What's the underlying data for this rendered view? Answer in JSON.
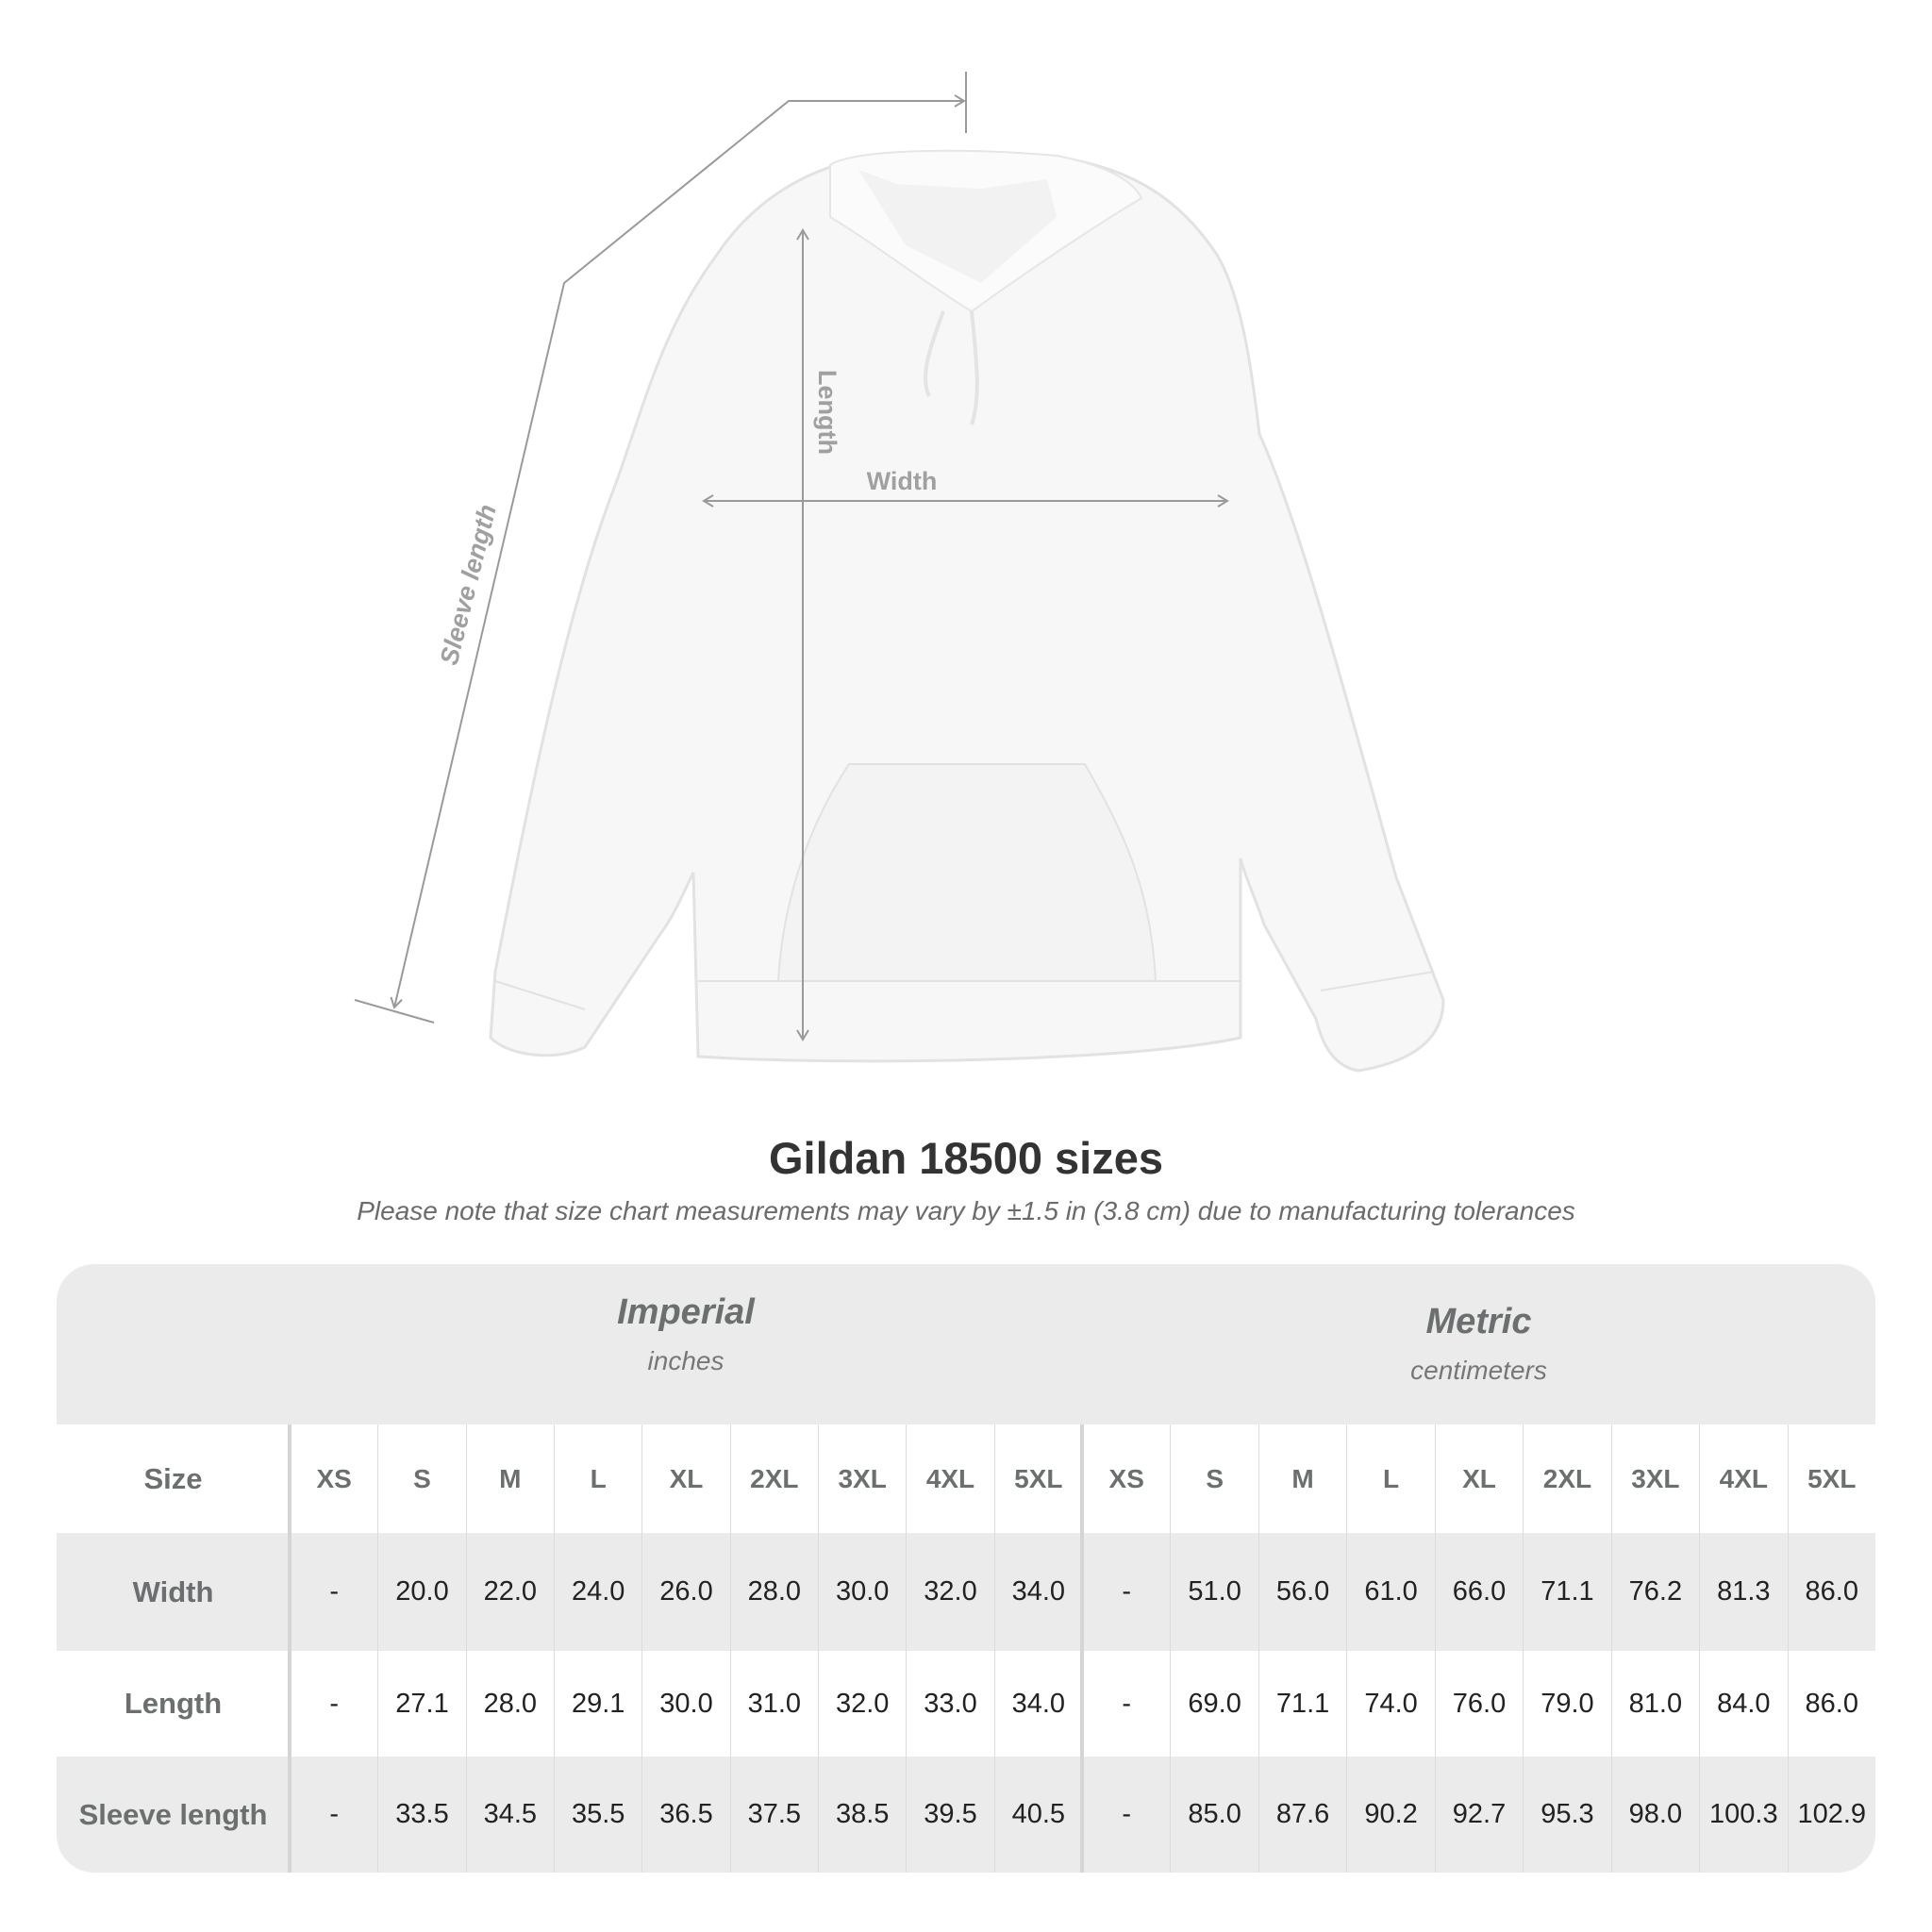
{
  "figure": {
    "labels": {
      "sleeve": "Sleeve length",
      "length": "Length",
      "width": "Width"
    }
  },
  "title": "Gildan 18500 sizes",
  "note": "Please note that size chart measurements may vary by ±1.5 in (3.8 cm) due to manufacturing tolerances",
  "table": {
    "imperial": {
      "name": "Imperial",
      "unit": "inches"
    },
    "metric": {
      "name": "Metric",
      "unit": "centimeters"
    },
    "size_label": "Size",
    "sizes": [
      "XS",
      "S",
      "M",
      "L",
      "XL",
      "2XL",
      "3XL",
      "4XL",
      "5XL"
    ],
    "rows": [
      {
        "label": "Width",
        "imperial": [
          "-",
          "20.0",
          "22.0",
          "24.0",
          "26.0",
          "28.0",
          "30.0",
          "32.0",
          "34.0"
        ],
        "metric": [
          "-",
          "51.0",
          "56.0",
          "61.0",
          "66.0",
          "71.1",
          "76.2",
          "81.3",
          "86.0"
        ]
      },
      {
        "label": "Length",
        "imperial": [
          "-",
          "27.1",
          "28.0",
          "29.1",
          "30.0",
          "31.0",
          "32.0",
          "33.0",
          "34.0"
        ],
        "metric": [
          "-",
          "69.0",
          "71.1",
          "74.0",
          "76.0",
          "79.0",
          "81.0",
          "84.0",
          "86.0"
        ]
      },
      {
        "label": "Sleeve length",
        "imperial": [
          "-",
          "33.5",
          "34.5",
          "35.5",
          "36.5",
          "37.5",
          "38.5",
          "39.5",
          "40.5"
        ],
        "metric": [
          "-",
          "85.0",
          "87.6",
          "90.2",
          "92.7",
          "95.3",
          "98.0",
          "100.3",
          "102.9"
        ]
      }
    ]
  },
  "colors": {
    "header_bg": "#ebebeb",
    "label_text": "#6b6f6f",
    "measure_line": "#9a9a9a"
  }
}
